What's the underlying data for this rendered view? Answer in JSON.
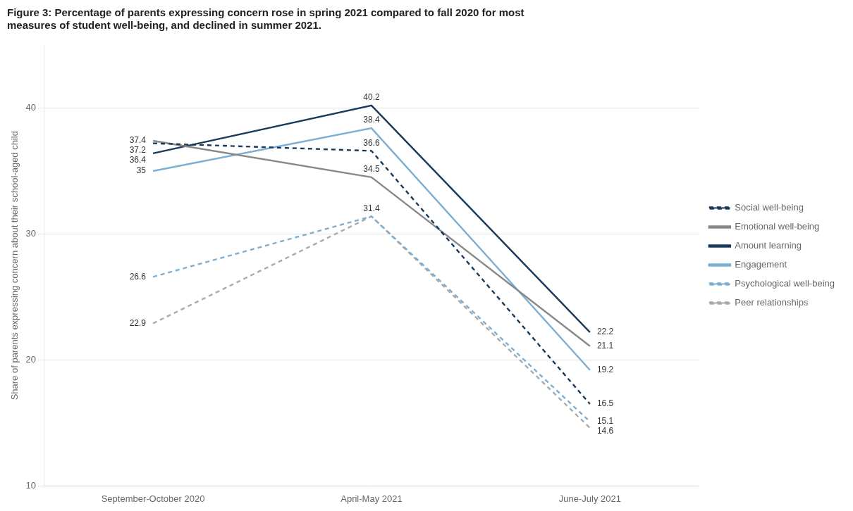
{
  "chart_data": {
    "type": "line",
    "title": "Figure 3: Percentage of parents expressing concern rose in spring 2021 compared to fall 2020 for most\nmeasures of student well-being, and declined in summer 2021.",
    "y_label": "Share of parents expressing concern about their school-aged child",
    "categories": [
      "September-October 2020",
      "April-May 2021",
      "June-July 2021"
    ],
    "series": [
      {
        "name": "Social well-being",
        "color": "#1a3a5c",
        "line_style": "dashed",
        "values": [
          37.2,
          36.6,
          16.5
        ]
      },
      {
        "name": "Emotional well-being",
        "color": "#888888",
        "line_style": "solid",
        "values": [
          37.4,
          34.5,
          21.1
        ]
      },
      {
        "name": "Amount learning",
        "color": "#1a3a5c",
        "line_style": "solid",
        "values": [
          36.4,
          40.2,
          22.2
        ]
      },
      {
        "name": "Engagement",
        "color": "#7bafd4",
        "line_style": "solid",
        "values": [
          35.0,
          38.4,
          19.2
        ]
      },
      {
        "name": "Psychological well-being",
        "color": "#7bafd4",
        "line_style": "dashed",
        "values": [
          26.6,
          31.4,
          15.1
        ]
      },
      {
        "name": "Peer relationships",
        "color": "#aaaaaa",
        "line_style": "dashed",
        "values": [
          22.9,
          31.4,
          14.6
        ]
      }
    ],
    "ylim": [
      10,
      45
    ],
    "yticks": [
      10,
      20,
      30,
      40
    ],
    "grid": true,
    "legend": "right",
    "annotations": [
      {
        "x": "September-October 2020",
        "y": 37.4,
        "text": "37.4"
      },
      {
        "x": "September-October 2020",
        "y": 37.2,
        "text": "37.2"
      },
      {
        "x": "September-October 2020",
        "y": 36.4,
        "text": "36.4"
      },
      {
        "x": "September-October 2020",
        "y": 35.0,
        "text": "35"
      },
      {
        "x": "September-October 2020",
        "y": 26.6,
        "text": "26.6"
      },
      {
        "x": "September-October 2020",
        "y": 22.9,
        "text": "22.9"
      },
      {
        "x": "April-May 2021",
        "y": 40.2,
        "text": "40.2"
      },
      {
        "x": "April-May 2021",
        "y": 38.4,
        "text": "38.4"
      },
      {
        "x": "April-May 2021",
        "y": 36.6,
        "text": "36.6"
      },
      {
        "x": "April-May 2021",
        "y": 34.5,
        "text": "34.5"
      },
      {
        "x": "April-May 2021",
        "y": 31.4,
        "text": "31.4"
      },
      {
        "x": "June-July 2021",
        "y": 22.2,
        "text": "22.2"
      },
      {
        "x": "June-July 2021",
        "y": 21.1,
        "text": "21.1"
      },
      {
        "x": "June-July 2021",
        "y": 19.2,
        "text": "19.2"
      },
      {
        "x": "June-July 2021",
        "y": 16.5,
        "text": "16.5"
      },
      {
        "x": "June-July 2021",
        "y": 15.1,
        "text": "15.1"
      },
      {
        "x": "June-July 2021",
        "y": 14.6,
        "text": "14.6"
      }
    ]
  }
}
